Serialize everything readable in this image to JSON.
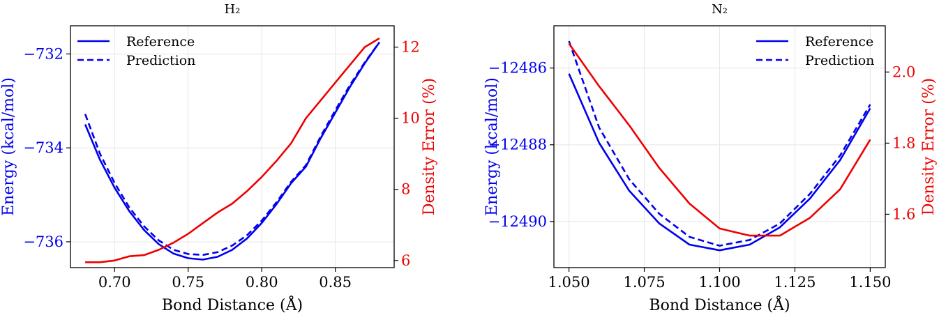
{
  "colors": {
    "energy": "#0000ee",
    "density": "#ee0000",
    "axis": "#000000",
    "grid": "#e6e6e6"
  },
  "chart_data": [
    {
      "type": "line",
      "title": "H₂",
      "xlabel": "Bond Distance (Å)",
      "ylabel_left": "Energy (kcal/mol)",
      "ylabel_right": "Density Error (%)",
      "x": [
        0.68,
        0.69,
        0.7,
        0.71,
        0.72,
        0.73,
        0.74,
        0.75,
        0.76,
        0.77,
        0.78,
        0.79,
        0.8,
        0.81,
        0.82,
        0.83,
        0.84,
        0.85,
        0.86,
        0.87,
        0.88
      ],
      "xlim": [
        0.67,
        0.89
      ],
      "xticks": [
        0.7,
        0.75,
        0.8,
        0.85
      ],
      "xtick_labels": [
        "0.70",
        "0.75",
        "0.80",
        "0.85"
      ],
      "ylim_left": [
        -736.55,
        -731.4
      ],
      "yticks_left": [
        -736,
        -734,
        -732
      ],
      "ytick_labels_left": [
        "−736",
        "−734",
        "−732"
      ],
      "ylim_right": [
        5.8,
        12.6
      ],
      "yticks_right": [
        6,
        8,
        10,
        12
      ],
      "ytick_labels_right": [
        "6",
        "8",
        "10",
        "12"
      ],
      "grid": true,
      "legend_position": "top-left",
      "series": [
        {
          "name": "Reference",
          "axis": "left",
          "style": "solid",
          "values": [
            -733.5,
            -734.25,
            -734.85,
            -735.35,
            -735.75,
            -736.05,
            -736.25,
            -736.35,
            -736.38,
            -736.32,
            -736.17,
            -735.93,
            -735.6,
            -735.2,
            -734.75,
            -734.4,
            -733.8,
            -733.25,
            -732.7,
            -732.2,
            -731.75
          ]
        },
        {
          "name": "Prediction",
          "axis": "left",
          "style": "dashed",
          "values": [
            -733.28,
            -734.12,
            -734.75,
            -735.27,
            -735.67,
            -735.97,
            -736.17,
            -736.26,
            -736.28,
            -736.22,
            -736.08,
            -735.86,
            -735.55,
            -735.16,
            -734.72,
            -734.37,
            -733.76,
            -733.2,
            -732.66,
            -732.18,
            -731.75
          ]
        },
        {
          "name": "Density Error",
          "axis": "right",
          "style": "solid",
          "values": [
            5.95,
            5.95,
            6.0,
            6.12,
            6.15,
            6.3,
            6.5,
            6.75,
            7.05,
            7.35,
            7.6,
            7.95,
            8.35,
            8.8,
            9.3,
            10.0,
            10.5,
            11.0,
            11.5,
            12.0,
            12.25
          ]
        }
      ]
    },
    {
      "type": "line",
      "title": "N₂",
      "xlabel": "Bond Distance (Å)",
      "ylabel_left": "Energy (kcal/mol)",
      "ylabel_right": "Density Error (%)",
      "x": [
        1.05,
        1.06,
        1.07,
        1.08,
        1.09,
        1.1,
        1.11,
        1.12,
        1.13,
        1.14,
        1.15
      ],
      "xlim": [
        1.045,
        1.155
      ],
      "xticks": [
        1.05,
        1.075,
        1.1,
        1.125,
        1.15
      ],
      "xtick_labels": [
        "1.050",
        "1.075",
        "1.100",
        "1.125",
        "1.150"
      ],
      "ylim_left": [
        -12491.2,
        -12484.9
      ],
      "yticks_left": [
        -12490,
        -12488,
        -12486
      ],
      "ytick_labels_left": [
        "−12490",
        "−12488",
        "−12486"
      ],
      "ylim_right": [
        1.45,
        2.13
      ],
      "yticks_right": [
        1.6,
        1.8,
        2.0
      ],
      "ytick_labels_right": [
        "1.6",
        "1.8",
        "2.0"
      ],
      "grid": true,
      "legend_position": "top-right",
      "series": [
        {
          "name": "Reference",
          "axis": "left",
          "style": "solid",
          "values": [
            -12486.15,
            -12487.95,
            -12489.2,
            -12490.05,
            -12490.6,
            -12490.75,
            -12490.6,
            -12490.15,
            -12489.4,
            -12488.4,
            -12487.05
          ]
        },
        {
          "name": "Prediction",
          "axis": "left",
          "style": "dashed",
          "values": [
            -12485.3,
            -12487.55,
            -12488.9,
            -12489.8,
            -12490.4,
            -12490.63,
            -12490.48,
            -12490.05,
            -12489.28,
            -12488.28,
            -12486.95
          ]
        },
        {
          "name": "Density Error",
          "axis": "right",
          "style": "solid",
          "values": [
            2.08,
            1.96,
            1.85,
            1.73,
            1.63,
            1.56,
            1.54,
            1.54,
            1.59,
            1.67,
            1.81
          ]
        }
      ]
    }
  ]
}
